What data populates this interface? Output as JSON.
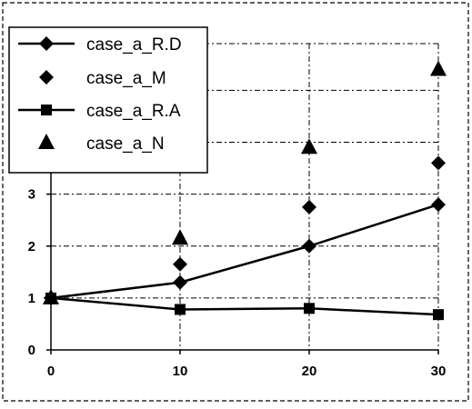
{
  "chart_data": {
    "type": "line",
    "x": [
      0,
      10,
      20,
      30
    ],
    "xticks": [
      "0",
      "10",
      "20",
      "30"
    ],
    "yticks": [
      "0",
      "1",
      "2",
      "3"
    ],
    "ylim": [
      0,
      5.9
    ],
    "xlim": [
      0,
      30
    ],
    "grid": true,
    "legend_position": "top-left",
    "series": [
      {
        "name": "case_a_R.D",
        "marker": "diamond",
        "line": true,
        "values": [
          1.0,
          1.3,
          2.0,
          2.8
        ]
      },
      {
        "name": "case_a_M",
        "marker": "diamond",
        "line": false,
        "values": [
          1.0,
          1.65,
          2.75,
          3.6
        ]
      },
      {
        "name": "case_a_R.A",
        "marker": "square",
        "line": true,
        "values": [
          1.0,
          0.78,
          0.8,
          0.68
        ]
      },
      {
        "name": "case_a_N",
        "marker": "triangle",
        "line": false,
        "values": [
          1.0,
          2.15,
          3.9,
          5.4
        ]
      }
    ],
    "colors": {
      "line": "#000000",
      "grid": "#000000",
      "background": "#ffffff"
    }
  }
}
